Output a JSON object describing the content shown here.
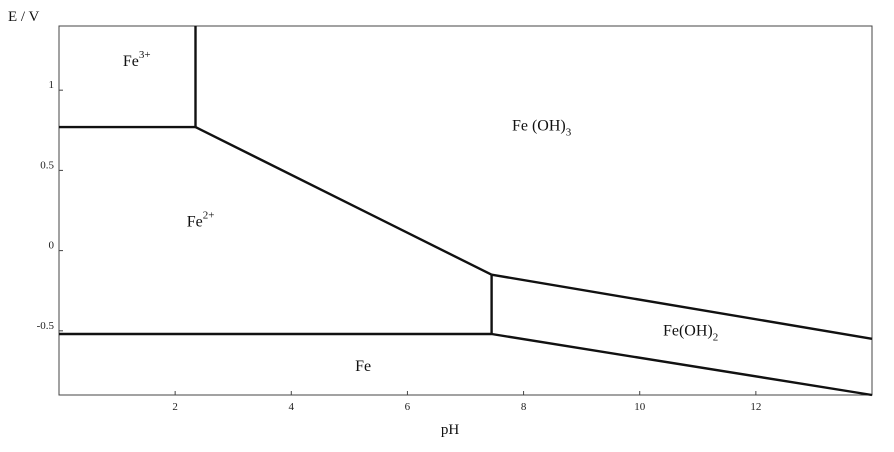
{
  "chart_data": {
    "type": "line",
    "title": "",
    "xlabel": "pH",
    "ylabel": "E / V",
    "xlim": [
      0,
      14
    ],
    "ylim": [
      -0.9,
      1.4
    ],
    "xticks": [
      2,
      4,
      6,
      8,
      10,
      12
    ],
    "xtick_labels": [
      "2",
      "4",
      "6",
      "8",
      "10",
      "12"
    ],
    "yticks": [
      1,
      0.5,
      0,
      -0.5
    ],
    "ytick_labels": [
      "1",
      "0.5",
      "0",
      "-0.5"
    ],
    "grid": false,
    "series": [
      {
        "x": [
          0,
          2.35
        ],
        "y": [
          0.77,
          0.77
        ]
      },
      {
        "x": [
          2.35,
          2.35
        ],
        "y": [
          0.77,
          1.4
        ]
      },
      {
        "x": [
          2.35,
          7.45
        ],
        "y": [
          0.77,
          -0.15
        ]
      },
      {
        "x": [
          0,
          7.45
        ],
        "y": [
          -0.52,
          -0.52
        ]
      },
      {
        "x": [
          7.45,
          7.45
        ],
        "y": [
          -0.52,
          -0.15
        ]
      },
      {
        "x": [
          7.45,
          14
        ],
        "y": [
          -0.15,
          -0.55
        ]
      },
      {
        "x": [
          7.45,
          14
        ],
        "y": [
          -0.52,
          -0.92
        ]
      }
    ],
    "regions": [
      {
        "species": "Fe",
        "super": "3+",
        "sub": "",
        "x": 1.1,
        "y": 1.15
      },
      {
        "species": "Fe (OH)",
        "super": "",
        "sub": "3",
        "x": 7.8,
        "y": 0.75
      },
      {
        "species": "Fe",
        "super": "2+",
        "sub": "",
        "x": 2.2,
        "y": 0.15
      },
      {
        "species": "Fe(OH)",
        "super": "",
        "sub": "2",
        "x": 10.4,
        "y": -0.53
      },
      {
        "species": "Fe",
        "super": "",
        "sub": "",
        "x": 5.1,
        "y": -0.75
      }
    ]
  }
}
